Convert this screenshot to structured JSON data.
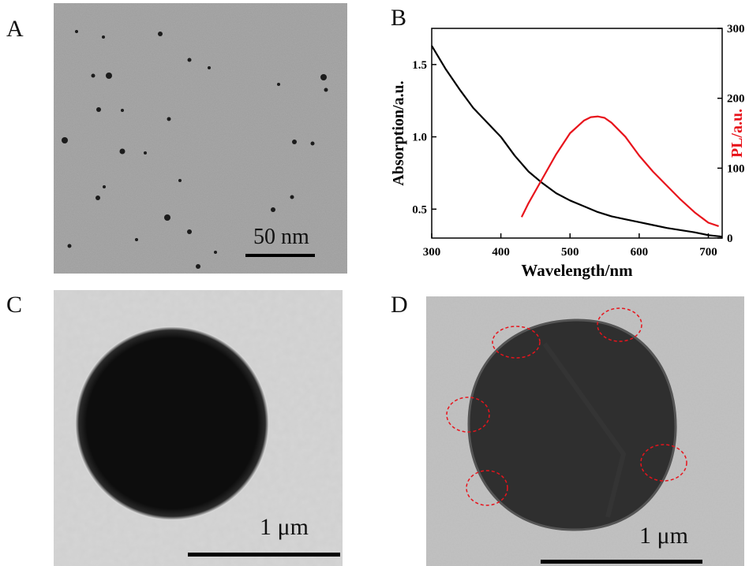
{
  "panels": {
    "a": {
      "letter": "A",
      "scale_label": "50 nm"
    },
    "b": {
      "letter": "B"
    },
    "c": {
      "letter": "C",
      "scale_label": "1 μm"
    },
    "d": {
      "letter": "D",
      "scale_label": "1 μm"
    }
  },
  "chart_data": {
    "type": "line",
    "xlabel": "Wavelength/nm",
    "ylabel": "Absorption/a.u.",
    "y2label": "PL/a.u.",
    "xlim": [
      300,
      720
    ],
    "ylim": [
      0.3,
      1.75
    ],
    "y2lim": [
      0,
      300
    ],
    "xticks": [
      "300",
      "400",
      "500",
      "600",
      "700"
    ],
    "yticks": [
      "0.5",
      "1.0",
      "1.5"
    ],
    "y2ticks": [
      "0",
      "100",
      "200",
      "300"
    ],
    "grid": false,
    "series": [
      {
        "axis": "left",
        "color": "#000000",
        "x": [
          300,
          320,
          340,
          360,
          380,
          400,
          420,
          440,
          460,
          480,
          500,
          520,
          540,
          560,
          580,
          600,
          620,
          640,
          660,
          680,
          700,
          720
        ],
        "y": [
          1.63,
          1.47,
          1.33,
          1.2,
          1.1,
          1.0,
          0.87,
          0.76,
          0.68,
          0.61,
          0.56,
          0.52,
          0.48,
          0.45,
          0.43,
          0.41,
          0.39,
          0.37,
          0.355,
          0.34,
          0.32,
          0.31
        ]
      },
      {
        "axis": "right",
        "color": "#e8141c",
        "x": [
          430,
          440,
          460,
          480,
          500,
          520,
          530,
          540,
          550,
          560,
          580,
          600,
          620,
          640,
          660,
          680,
          700,
          715
        ],
        "y": [
          30,
          50,
          85,
          120,
          150,
          168,
          173,
          174,
          172,
          165,
          145,
          118,
          95,
          75,
          55,
          37,
          22,
          17
        ]
      }
    ]
  },
  "colors": {
    "pl_axis": "#e8141c",
    "abs_curve": "#000000"
  }
}
